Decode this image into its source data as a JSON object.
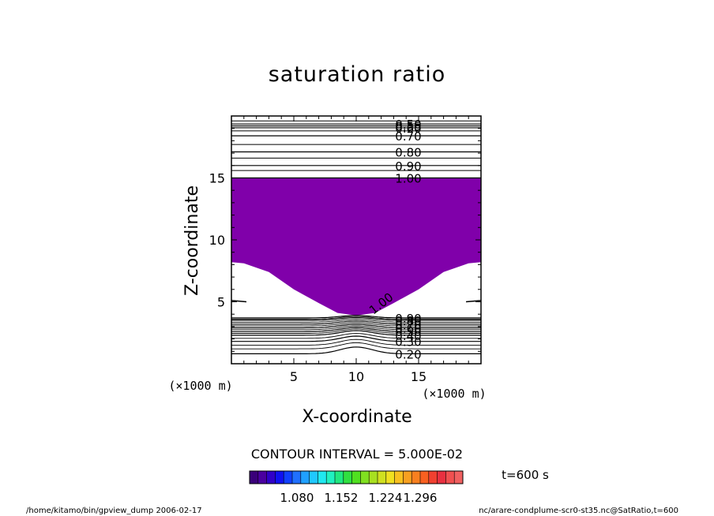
{
  "chart_data": {
    "type": "contour",
    "title": "saturation ratio",
    "xlabel": "X-coordinate",
    "ylabel": "Z-coordinate",
    "x_unit": "(×1000 m)",
    "y_unit": "(×1000 m)",
    "xlim": [
      0,
      20
    ],
    "ylim": [
      0,
      20
    ],
    "x_ticks": [
      {
        "value": 5,
        "label": "5"
      },
      {
        "value": 10,
        "label": "10"
      },
      {
        "value": 15,
        "label": "15"
      }
    ],
    "y_ticks": [
      {
        "value": 5,
        "label": "5"
      },
      {
        "value": 10,
        "label": "10"
      },
      {
        "value": 15,
        "label": "15"
      }
    ],
    "contour_interval_text": "CONTOUR INTERVAL = 5.000E-02",
    "time_label": "t=600 s",
    "shaded_region": {
      "label": "saturation ratio >= 1.00",
      "color": "#8000aa"
    },
    "upper_contours": [
      {
        "z": 19.35,
        "label": "0.50"
      },
      {
        "z": 19.2,
        "label": "0.55"
      },
      {
        "z": 19.05,
        "label": "0.60"
      },
      {
        "z": 18.4,
        "label": "0.70"
      },
      {
        "z": 17.1,
        "label": "0.80"
      },
      {
        "z": 16.0,
        "label": "0.90"
      },
      {
        "z": 15.0,
        "label": "1.00"
      }
    ],
    "lower_contours": [
      {
        "z": 3.7,
        "label": "0.90"
      },
      {
        "z": 3.5,
        "label": "0.80"
      },
      {
        "z": 3.2,
        "label": "0.70"
      },
      {
        "z": 2.9,
        "label": "0.60"
      },
      {
        "z": 2.6,
        "label": "0.50"
      },
      {
        "z": 2.3,
        "label": "0.40"
      },
      {
        "z": 1.8,
        "label": "0.30"
      },
      {
        "z": 0.8,
        "label": "0.20"
      }
    ],
    "inner_label": "1.00",
    "colorbar": {
      "tick_labels": [
        "1.080",
        "1.152",
        "1.224",
        "1.296"
      ],
      "colors": [
        "#3a007a",
        "#4a00a0",
        "#3000c8",
        "#1010f0",
        "#1040ff",
        "#2070ff",
        "#20a0ff",
        "#20c8ff",
        "#20e8f0",
        "#20f0c0",
        "#20e880",
        "#30e040",
        "#50e020",
        "#80e020",
        "#a8e020",
        "#d0e020",
        "#f0e020",
        "#f8c020",
        "#f8a020",
        "#f88020",
        "#f86020",
        "#f04030",
        "#e83040",
        "#f05050",
        "#f06060"
      ]
    }
  },
  "footer": {
    "left": "/home/kitamo/bin/gpview_dump  2006-02-17",
    "right": "nc/arare-condplume-scr0-st35.nc@SatRatio,t=600"
  }
}
